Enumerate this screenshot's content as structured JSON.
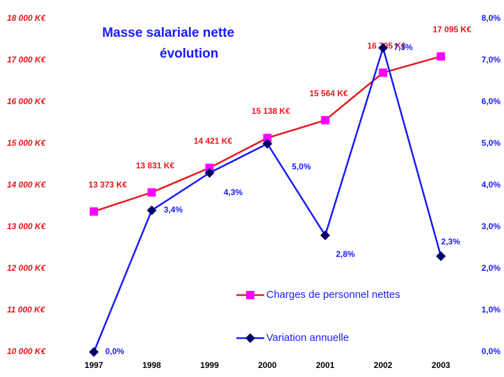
{
  "chart_data": {
    "type": "line",
    "title": [
      "Masse salariale nette",
      "évolution"
    ],
    "categories": [
      "1997",
      "1998",
      "1999",
      "2000",
      "2001",
      "2002",
      "2003"
    ],
    "series": [
      {
        "name": "Charges de personnel nettes",
        "color": "#e8161a",
        "marker_color": "#ff00ff",
        "marker": "square",
        "values": [
          13373,
          13831,
          14421,
          15138,
          15564,
          16705,
          17095
        ],
        "value_labels": [
          "13 373 K€",
          "13 831 K€",
          "14 421 K€",
          "15 138 K€",
          "15 564 K€",
          "16 705 K€",
          "17 095 K€"
        ]
      },
      {
        "name": "Variation annuelle",
        "color": "#1a1aff",
        "marker_color": "#000066",
        "marker": "diamond",
        "axis": "y2",
        "values": [
          0.0,
          3.4,
          4.3,
          5.0,
          2.8,
          7.3,
          2.3
        ],
        "value_labels": [
          "0,0%",
          "3,4%",
          "4,3%",
          "5,0%",
          "2,8%",
          "7,3%",
          "2,3%"
        ]
      }
    ],
    "ylim": [
      10000,
      18000
    ],
    "yticks": [
      {
        "value": 10000,
        "label": "10 000 K€"
      },
      {
        "value": 11000,
        "label": "11 000 K€"
      },
      {
        "value": 12000,
        "label": "12 000 K€"
      },
      {
        "value": 13000,
        "label": "13 000 K€"
      },
      {
        "value": 14000,
        "label": "14 000 K€"
      },
      {
        "value": 15000,
        "label": "15 000 K€"
      },
      {
        "value": 16000,
        "label": "16 000 K€"
      },
      {
        "value": 17000,
        "label": "17 000 K€"
      },
      {
        "value": 18000,
        "label": "18 000 K€"
      }
    ],
    "y2lim": [
      0,
      8
    ],
    "y2ticks": [
      {
        "value": 0,
        "label": "0,0%"
      },
      {
        "value": 1,
        "label": "1,0%"
      },
      {
        "value": 2,
        "label": "2,0%"
      },
      {
        "value": 3,
        "label": "3,0%"
      },
      {
        "value": 4,
        "label": "4,0%"
      },
      {
        "value": 5,
        "label": "5,0%"
      },
      {
        "value": 6,
        "label": "6,0%"
      },
      {
        "value": 7,
        "label": "7,0%"
      },
      {
        "value": 8,
        "label": "8,0%"
      }
    ],
    "legend": "lower right"
  }
}
